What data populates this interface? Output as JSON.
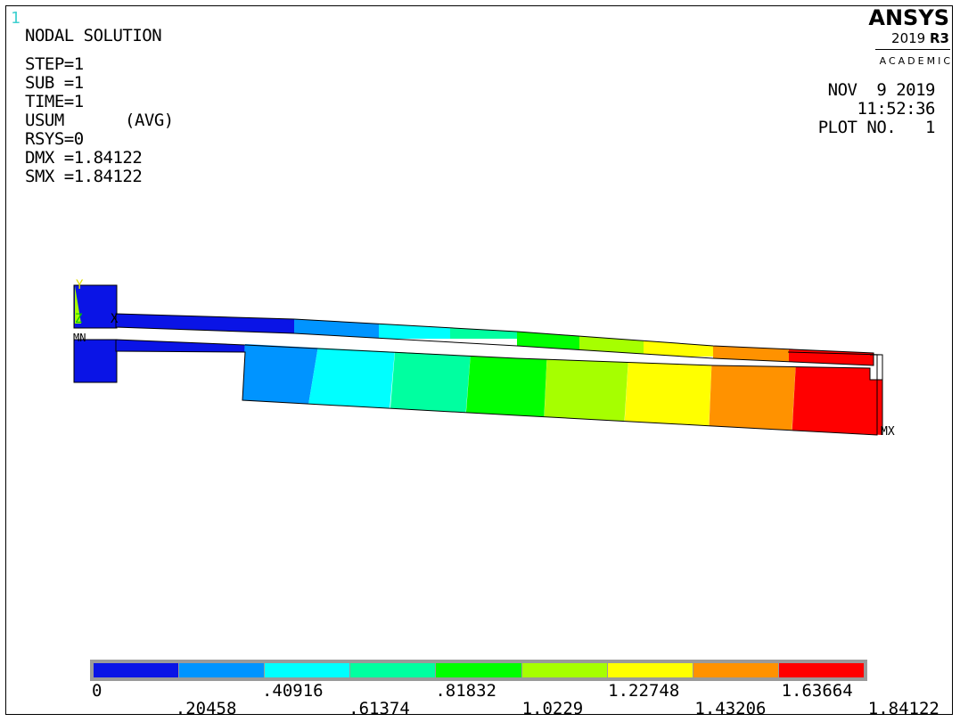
{
  "window_number": "1",
  "header": {
    "title": "NODAL SOLUTION",
    "step": "STEP=1",
    "sub": "SUB =1",
    "time": "TIME=1",
    "usum": "USUM",
    "avg": "(AVG)",
    "rsys": "RSYS=0",
    "dmx": "DMX =1.84122",
    "smx": "SMX =1.84122"
  },
  "logo": {
    "name": "ANSYS",
    "version": "2019",
    "release": "R3",
    "edition": "ACADEMIC"
  },
  "info": {
    "date": "NOV  9 2019",
    "time": "11:52:36",
    "plot_no": "PLOT NO.   1"
  },
  "model_labels": {
    "axis_y": "Y",
    "axis_z": "Z",
    "axis_x": "X",
    "min_marker": "MN",
    "max_marker": "MX"
  },
  "legend": {
    "colors": [
      "#0a14e6",
      "#0094ff",
      "#00ffff",
      "#00ffa0",
      "#00ff00",
      "#a6ff00",
      "#ffff00",
      "#ff9200",
      "#ff0000"
    ],
    "top_labels": [
      "0",
      ".40916",
      ".81832",
      "1.22748",
      "1.63664"
    ],
    "bottom_labels": [
      ".20458",
      ".61374",
      "1.0229",
      "1.43206",
      "1.84122"
    ]
  }
}
